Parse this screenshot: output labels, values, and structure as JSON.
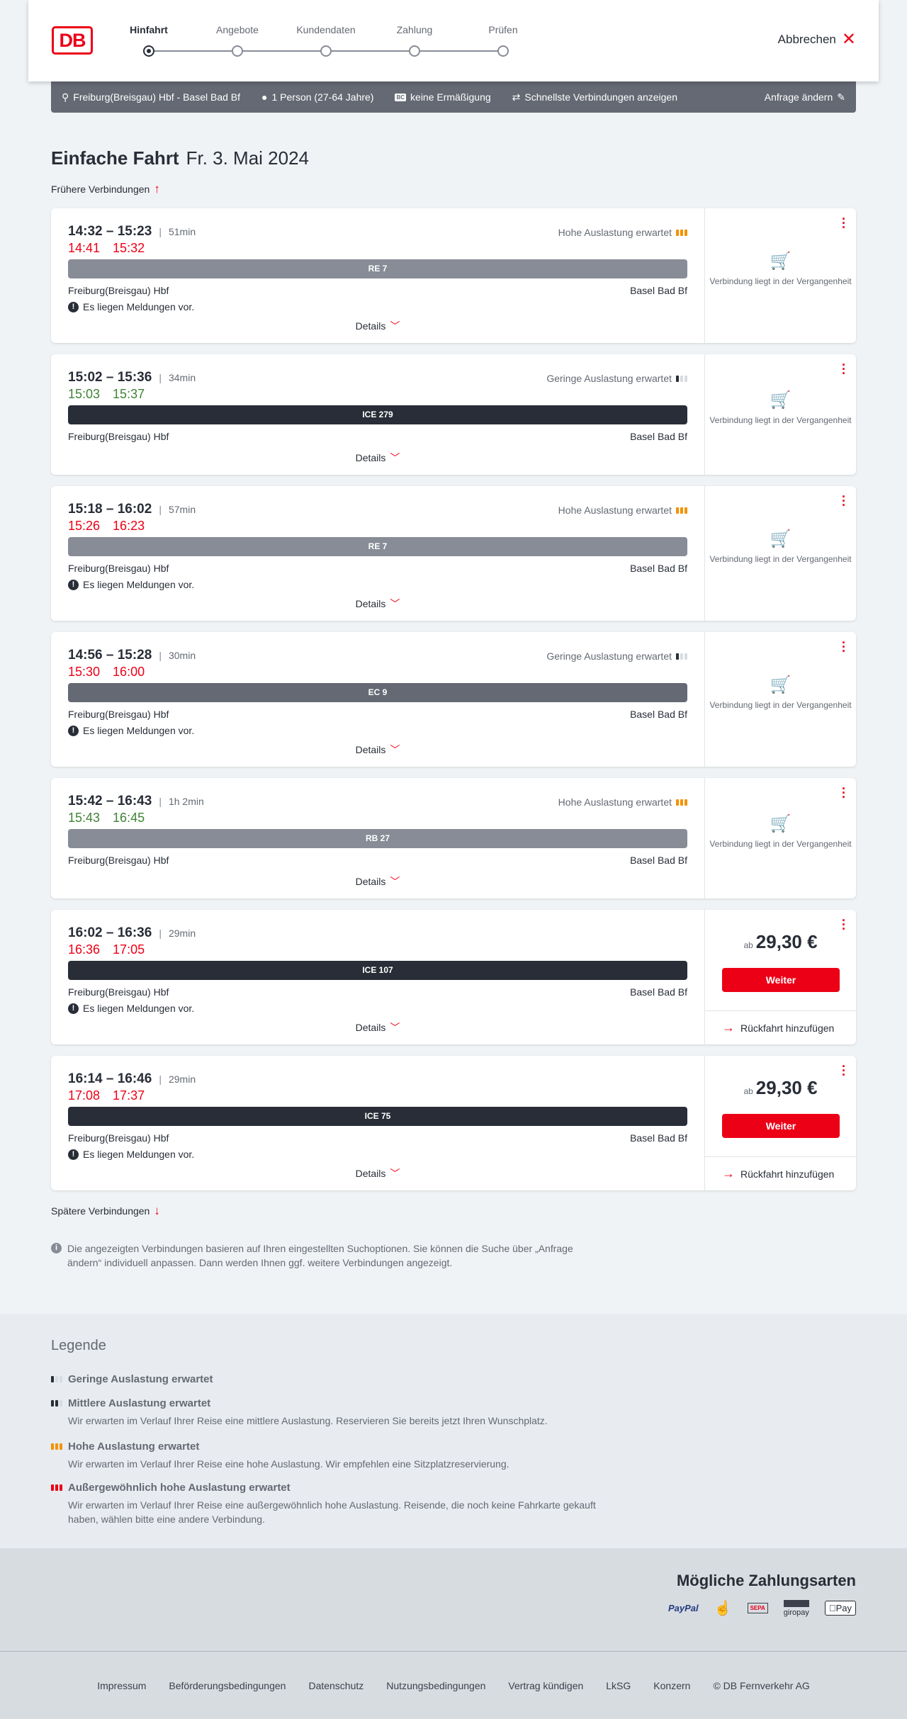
{
  "header": {
    "logo": "DB",
    "steps": [
      "Hinfahrt",
      "Angebote",
      "Kundendaten",
      "Zahlung",
      "Prüfen"
    ],
    "active_step": 0,
    "cancel": "Abbrechen"
  },
  "summary": {
    "route": "Freiburg(Breisgau) Hbf - Basel Bad Bf",
    "passengers": "1 Person (27-64 Jahre)",
    "discount_badge": "BC",
    "discount": "keine Ermäßigung",
    "option": "Schnellste Verbindungen anzeigen",
    "edit": "Anfrage ändern"
  },
  "title": {
    "bold": "Einfache Fahrt",
    "date": "Fr. 3. Mai 2024"
  },
  "earlier": "Frühere Verbindungen",
  "later": "Spätere Verbindungen",
  "labels": {
    "details": "Details",
    "messages": "Es liegen Meldungen vor.",
    "past": "Verbindung liegt in der Vergangenheit",
    "from_prefix": "ab",
    "continue": "Weiter",
    "return": "Rückfahrt hinzufügen"
  },
  "colors": {
    "red": "#ec0016",
    "green": "#408335",
    "high_load": "#f39200",
    "re_bar": "#878c96",
    "ice_bar": "#282d37",
    "ec_bar": "#646973"
  },
  "connections": [
    {
      "time": "14:32 – 15:23",
      "duration": "51min",
      "rt_dep": "14:41",
      "rt_arr": "15:32",
      "rt_status": "delayed",
      "train": "RE 7",
      "bar": "#878c96",
      "from": "Freiburg(Breisgau) Hbf",
      "to": "Basel Bad Bf",
      "load": "Hohe Auslastung erwartet",
      "load_level": 3,
      "messages": true,
      "past": true
    },
    {
      "time": "15:02 – 15:36",
      "duration": "34min",
      "rt_dep": "15:03",
      "rt_arr": "15:37",
      "rt_status": "ontime",
      "train": "ICE 279",
      "bar": "#282d37",
      "from": "Freiburg(Breisgau) Hbf",
      "to": "Basel Bad Bf",
      "load": "Geringe Auslastung erwartet",
      "load_level": 1,
      "messages": false,
      "past": true
    },
    {
      "time": "15:18 – 16:02",
      "duration": "57min",
      "rt_dep": "15:26",
      "rt_arr": "16:23",
      "rt_status": "delayed",
      "train": "RE 7",
      "bar": "#878c96",
      "from": "Freiburg(Breisgau) Hbf",
      "to": "Basel Bad Bf",
      "load": "Hohe Auslastung erwartet",
      "load_level": 3,
      "messages": true,
      "past": true
    },
    {
      "time": "14:56 – 15:28",
      "duration": "30min",
      "rt_dep": "15:30",
      "rt_arr": "16:00",
      "rt_status": "delayed",
      "train": "EC 9",
      "bar": "#646973",
      "from": "Freiburg(Breisgau) Hbf",
      "to": "Basel Bad Bf",
      "load": "Geringe Auslastung erwartet",
      "load_level": 1,
      "messages": true,
      "past": true
    },
    {
      "time": "15:42 – 16:43",
      "duration": "1h 2min",
      "rt_dep": "15:43",
      "rt_arr": "16:45",
      "rt_status": "ontime",
      "train": "RB 27",
      "bar": "#878c96",
      "from": "Freiburg(Breisgau) Hbf",
      "to": "Basel Bad Bf",
      "load": "Hohe Auslastung erwartet",
      "load_level": 3,
      "messages": false,
      "past": true
    },
    {
      "time": "16:02 – 16:36",
      "duration": "29min",
      "rt_dep": "16:36",
      "rt_arr": "17:05",
      "rt_status": "delayed",
      "train": "ICE 107",
      "bar": "#282d37",
      "from": "Freiburg(Breisgau) Hbf",
      "to": "Basel Bad Bf",
      "load": "",
      "load_level": 0,
      "messages": true,
      "past": false,
      "price": "29,30 €"
    },
    {
      "time": "16:14 – 16:46",
      "duration": "29min",
      "rt_dep": "17:08",
      "rt_arr": "17:37",
      "rt_status": "delayed",
      "train": "ICE 75",
      "bar": "#282d37",
      "from": "Freiburg(Breisgau) Hbf",
      "to": "Basel Bad Bf",
      "load": "",
      "load_level": 0,
      "messages": true,
      "past": false,
      "price": "29,30 €"
    }
  ],
  "info": "Die angezeigten Verbindungen basieren auf Ihren eingestellten Suchoptionen. Sie können die Suche über „Anfrage ändern“ individuell anpassen. Dann werden Ihnen ggf. weitere Verbindungen angezeigt.",
  "legend": {
    "title": "Legende",
    "items": [
      {
        "title": "Geringe Auslastung erwartet",
        "text": "",
        "level": 1
      },
      {
        "title": "Mittlere Auslastung erwartet",
        "text": "Wir erwarten im Verlauf Ihrer Reise eine mittlere Auslastung. Reservieren Sie bereits jetzt Ihren Wunschplatz.",
        "level": 2
      },
      {
        "title": "Hohe Auslastung erwartet",
        "text": "Wir erwarten im Verlauf Ihrer Reise eine hohe Auslastung. Wir empfehlen eine Sitzplatzreservierung.",
        "level": 3
      },
      {
        "title": "Außergewöhnlich hohe Auslastung erwartet",
        "text": "Wir erwarten im Verlauf Ihrer Reise eine außergewöhnlich hohe Auslastung. Reisende, die noch keine Fahrkarte gekauft haben, wählen bitte eine andere Verbindung.",
        "level": 4
      }
    ]
  },
  "payment": {
    "title": "Mögliche Zahlungsarten",
    "methods": [
      "PayPal",
      "Kreditkarte",
      "SEPA",
      "giropay",
      "Pay"
    ]
  },
  "footer": [
    "Impressum",
    "Beförderungsbedingungen",
    "Datenschutz",
    "Nutzungsbedingungen",
    "Vertrag kündigen",
    "LkSG",
    "Konzern",
    "© DB Fernverkehr AG"
  ]
}
